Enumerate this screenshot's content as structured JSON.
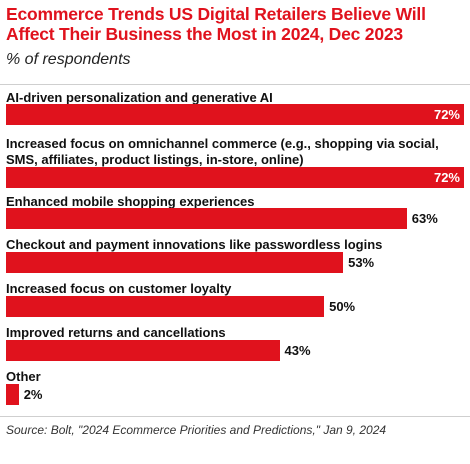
{
  "header": {
    "title": "Ecommerce Trends US Digital Retailers Believe Will Affect Their Business the Most in 2024, Dec 2023",
    "subtitle": "% of respondents"
  },
  "footer": {
    "source": "Source: Bolt, \"2024 Ecommerce Priorities and Predictions,\" Jan 9, 2024"
  },
  "colors": {
    "bar": "#e0121d",
    "title": "#e0121d"
  },
  "chart_data": {
    "type": "bar",
    "orientation": "horizontal",
    "title": "Ecommerce Trends US Digital Retailers Believe Will Affect Their Business the Most in 2024, Dec 2023",
    "subtitle": "% of respondents",
    "categories": [
      "AI-driven personalization and generative AI",
      "Increased focus on omnichannel commerce (e.g., shopping via social, SMS, affiliates, product listings, in-store, online)",
      "Enhanced mobile shopping experiences",
      "Checkout and payment innovations like passwordless logins",
      "Increased focus on customer loyalty",
      "Improved returns and cancellations",
      "Other"
    ],
    "values": [
      72,
      72,
      63,
      53,
      50,
      43,
      2
    ],
    "value_labels": [
      "72%",
      "72%",
      "63%",
      "53%",
      "50%",
      "43%",
      "2%"
    ],
    "xlim": [
      0,
      72
    ],
    "unit": "%",
    "grid": false,
    "legend": "none"
  }
}
